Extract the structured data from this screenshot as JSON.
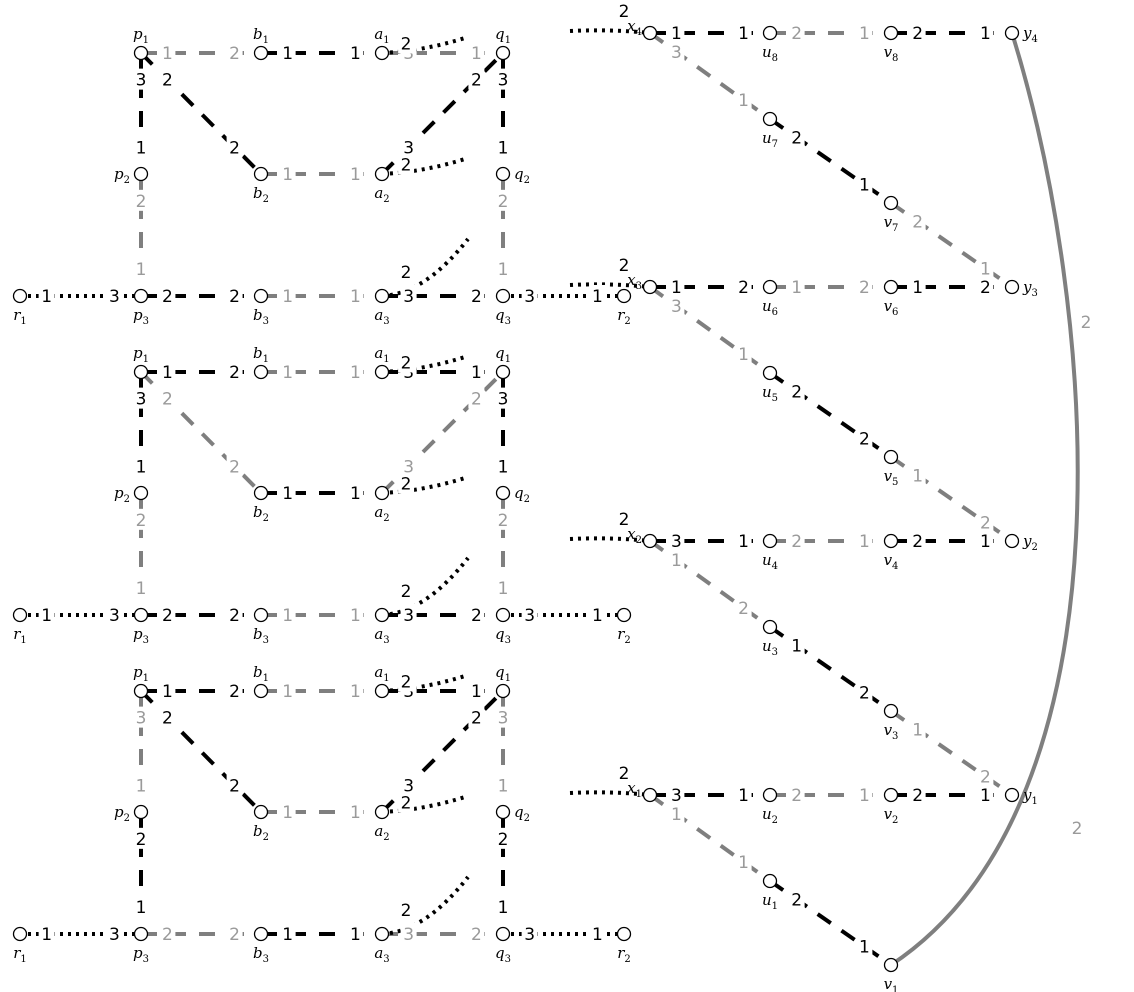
{
  "colors": {
    "black": "#000000",
    "gray": "#7f7f7f",
    "gray_text": "#9a9a9a",
    "bg": "#ffffff"
  },
  "vertex_names": {
    "p1": [
      "p",
      "1"
    ],
    "p2": [
      "p",
      "2"
    ],
    "p3": [
      "p",
      "3"
    ],
    "q1": [
      "q",
      "1"
    ],
    "q2": [
      "q",
      "2"
    ],
    "q3": [
      "q",
      "3"
    ],
    "a1": [
      "a",
      "1"
    ],
    "a2": [
      "a",
      "2"
    ],
    "a3": [
      "a",
      "3"
    ],
    "b1": [
      "b",
      "1"
    ],
    "b2": [
      "b",
      "2"
    ],
    "b3": [
      "b",
      "3"
    ],
    "r1": [
      "r",
      "1"
    ],
    "r2": [
      "r",
      "2"
    ],
    "x1": [
      "x",
      "1"
    ],
    "x2": [
      "x",
      "2"
    ],
    "x3": [
      "x",
      "3"
    ],
    "x4": [
      "x",
      "4"
    ],
    "y1": [
      "y",
      "1"
    ],
    "y2": [
      "y",
      "2"
    ],
    "y3": [
      "y",
      "3"
    ],
    "y4": [
      "y",
      "4"
    ],
    "u1": [
      "u",
      "1"
    ],
    "u2": [
      "u",
      "2"
    ],
    "u3": [
      "u",
      "3"
    ],
    "u4": [
      "u",
      "4"
    ],
    "u5": [
      "u",
      "5"
    ],
    "u6": [
      "u",
      "6"
    ],
    "u7": [
      "u",
      "7"
    ],
    "u8": [
      "u",
      "8"
    ],
    "v1": [
      "v",
      "1"
    ],
    "v2": [
      "v",
      "2"
    ],
    "v3": [
      "v",
      "3"
    ],
    "v4": [
      "v",
      "4"
    ],
    "v5": [
      "v",
      "5"
    ],
    "v6": [
      "v",
      "6"
    ],
    "v7": [
      "v",
      "7"
    ],
    "v8": [
      "v",
      "8"
    ]
  },
  "gadgets": [
    {
      "edges": {
        "p1-b1": {
          "style": "gray",
          "l": [
            "1",
            "2"
          ]
        },
        "b1-a1": {
          "style": "black",
          "l": [
            "1",
            "1"
          ]
        },
        "a1-q1": {
          "style": "gray",
          "l": [
            "3",
            "1"
          ]
        },
        "p1-p2": {
          "style": "black",
          "l": [
            "3",
            "1"
          ]
        },
        "p2-p3": {
          "style": "gray",
          "l": [
            "2",
            "1"
          ]
        },
        "p1-b2": {
          "style": "black",
          "l": [
            "2",
            "2"
          ]
        },
        "b2-a2": {
          "style": "gray",
          "l": [
            "1",
            "1"
          ]
        },
        "a2-q1": {
          "style": "black",
          "l": [
            "3",
            "2"
          ]
        },
        "q1-q2": {
          "style": "black",
          "l": [
            "3",
            "1"
          ]
        },
        "q2-q3": {
          "style": "gray",
          "l": [
            "2",
            "1"
          ]
        },
        "p3-b3": {
          "style": "black",
          "l": [
            "2",
            "2"
          ]
        },
        "b3-a3": {
          "style": "gray",
          "l": [
            "1",
            "1"
          ]
        },
        "a3-q3": {
          "style": "black",
          "l": [
            "3",
            "2"
          ]
        },
        "r1-p3": {
          "style": "dot",
          "l": [
            "1",
            "3"
          ]
        },
        "q3-r2": {
          "style": "dot",
          "l": [
            "3",
            "1"
          ]
        },
        "a1-out": {
          "l": "2"
        },
        "a2-out": {
          "l": "2"
        },
        "a3-out": {
          "l": "2"
        }
      }
    },
    {
      "edges": {
        "p1-b1": {
          "style": "black",
          "l": [
            "1",
            "2"
          ]
        },
        "b1-a1": {
          "style": "gray",
          "l": [
            "1",
            "1"
          ]
        },
        "a1-q1": {
          "style": "black",
          "l": [
            "3",
            "1"
          ]
        },
        "p1-p2": {
          "style": "black",
          "l": [
            "3",
            "1"
          ]
        },
        "p2-p3": {
          "style": "gray",
          "l": [
            "2",
            "1"
          ]
        },
        "p1-b2": {
          "style": "gray",
          "l": [
            "2",
            "2"
          ]
        },
        "b2-a2": {
          "style": "black",
          "l": [
            "1",
            "1"
          ]
        },
        "a2-q1": {
          "style": "gray",
          "l": [
            "3",
            "2"
          ]
        },
        "q1-q2": {
          "style": "black",
          "l": [
            "3",
            "1"
          ]
        },
        "q2-q3": {
          "style": "gray",
          "l": [
            "2",
            "1"
          ]
        },
        "p3-b3": {
          "style": "black",
          "l": [
            "2",
            "2"
          ]
        },
        "b3-a3": {
          "style": "gray",
          "l": [
            "1",
            "1"
          ]
        },
        "a3-q3": {
          "style": "black",
          "l": [
            "3",
            "2"
          ]
        },
        "r1-p3": {
          "style": "dot",
          "l": [
            "1",
            "3"
          ]
        },
        "q3-r2": {
          "style": "dot",
          "l": [
            "3",
            "1"
          ]
        },
        "a1-out": {
          "l": "2"
        },
        "a2-out": {
          "l": "2"
        },
        "a3-out": {
          "l": "2"
        }
      }
    },
    {
      "edges": {
        "p1-b1": {
          "style": "black",
          "l": [
            "1",
            "2"
          ]
        },
        "b1-a1": {
          "style": "gray",
          "l": [
            "1",
            "1"
          ]
        },
        "a1-q1": {
          "style": "black",
          "l": [
            "3",
            "1"
          ]
        },
        "p1-p2": {
          "style": "gray",
          "l": [
            "3",
            "1"
          ]
        },
        "p2-p3": {
          "style": "black",
          "l": [
            "2",
            "1"
          ]
        },
        "p1-b2": {
          "style": "black",
          "l": [
            "2",
            "2"
          ]
        },
        "b2-a2": {
          "style": "gray",
          "l": [
            "1",
            "1"
          ]
        },
        "a2-q1": {
          "style": "black",
          "l": [
            "3",
            "2"
          ]
        },
        "q1-q2": {
          "style": "gray",
          "l": [
            "3",
            "1"
          ]
        },
        "q2-q3": {
          "style": "black",
          "l": [
            "2",
            "1"
          ]
        },
        "p3-b3": {
          "style": "gray",
          "l": [
            "2",
            "2"
          ]
        },
        "b3-a3": {
          "style": "black",
          "l": [
            "1",
            "1"
          ]
        },
        "a3-q3": {
          "style": "gray",
          "l": [
            "3",
            "2"
          ]
        },
        "r1-p3": {
          "style": "dot",
          "l": [
            "1",
            "3"
          ]
        },
        "q3-r2": {
          "style": "dot",
          "l": [
            "3",
            "1"
          ]
        },
        "a1-out": {
          "l": "2"
        },
        "a2-out": {
          "l": "2"
        },
        "a3-out": {
          "l": "2"
        }
      }
    }
  ],
  "chains": [
    {
      "ids": {
        "x": "x4",
        "u": "u8",
        "v": "v8",
        "y": "y4",
        "ud": "u7",
        "vd": "v7",
        "yd": "y3"
      },
      "edges": {
        "in": {
          "l": "2"
        },
        "x-u": {
          "style": "black",
          "l": [
            "1",
            "1"
          ]
        },
        "u-v": {
          "style": "gray",
          "l": [
            "2",
            "1"
          ]
        },
        "v-y": {
          "style": "black",
          "l": [
            "2",
            "1"
          ]
        },
        "x-ud": {
          "style": "gray",
          "l": [
            "3",
            "1"
          ]
        },
        "ud-vd": {
          "style": "black",
          "l": [
            "2",
            "1"
          ]
        },
        "vd-yd": {
          "style": "gray",
          "l": [
            "2",
            "1"
          ]
        }
      }
    },
    {
      "ids": {
        "x": "x3",
        "u": "u6",
        "v": "v6",
        "y": "y3",
        "ud": "u5",
        "vd": "v5",
        "yd": "y2"
      },
      "edges": {
        "in": {
          "l": "2"
        },
        "x-u": {
          "style": "black",
          "l": [
            "1",
            "2"
          ]
        },
        "u-v": {
          "style": "gray",
          "l": [
            "1",
            "2"
          ]
        },
        "v-y": {
          "style": "black",
          "l": [
            "1",
            "2"
          ]
        },
        "x-ud": {
          "style": "gray",
          "l": [
            "3",
            "1"
          ]
        },
        "ud-vd": {
          "style": "black",
          "l": [
            "2",
            "2"
          ]
        },
        "vd-yd": {
          "style": "gray",
          "l": [
            "1",
            "2"
          ]
        }
      }
    },
    {
      "ids": {
        "x": "x2",
        "u": "u4",
        "v": "v4",
        "y": "y2",
        "ud": "u3",
        "vd": "v3",
        "yd": "y1"
      },
      "edges": {
        "in": {
          "l": "2"
        },
        "x-u": {
          "style": "black",
          "l": [
            "3",
            "1"
          ]
        },
        "u-v": {
          "style": "gray",
          "l": [
            "2",
            "1"
          ]
        },
        "v-y": {
          "style": "black",
          "l": [
            "2",
            "1"
          ]
        },
        "x-ud": {
          "style": "gray",
          "l": [
            "1",
            "2"
          ]
        },
        "ud-vd": {
          "style": "black",
          "l": [
            "1",
            "2"
          ]
        },
        "vd-yd": {
          "style": "gray",
          "l": [
            "1",
            "2"
          ]
        }
      }
    },
    {
      "ids": {
        "x": "x1",
        "u": "u2",
        "v": "v2",
        "y": "y1",
        "ud": "u1",
        "vd": "v1",
        "yd": ""
      },
      "edges": {
        "in": {
          "l": "2"
        },
        "x-u": {
          "style": "black",
          "l": [
            "3",
            "1"
          ]
        },
        "u-v": {
          "style": "gray",
          "l": [
            "2",
            "1"
          ]
        },
        "v-y": {
          "style": "black",
          "l": [
            "2",
            "1"
          ]
        },
        "x-ud": {
          "style": "gray",
          "l": [
            "1",
            "1"
          ]
        },
        "ud-vd": {
          "style": "black",
          "l": [
            "2",
            "1"
          ]
        }
      }
    }
  ],
  "arc": {
    "from": "y4",
    "to": "v1",
    "style": "gray",
    "labels": [
      "2",
      "2"
    ]
  }
}
